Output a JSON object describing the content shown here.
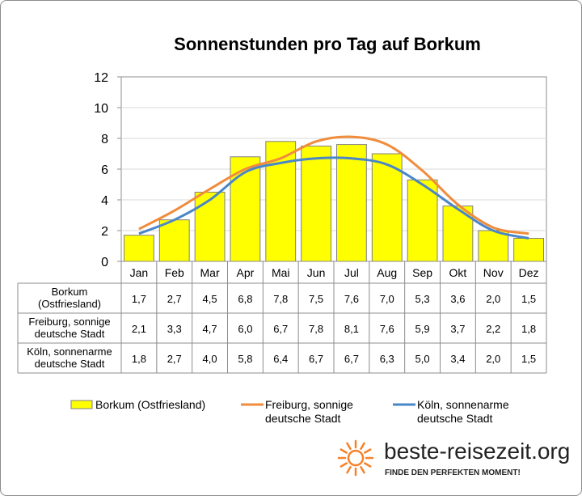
{
  "chart_data": {
    "type": "bar",
    "title": "Sonnenstunden pro Tag auf Borkum",
    "categories": [
      "Jan",
      "Feb",
      "Mar",
      "Apr",
      "Mai",
      "Jun",
      "Jul",
      "Aug",
      "Sep",
      "Okt",
      "Nov",
      "Dez"
    ],
    "ylim": [
      0,
      12
    ],
    "yticks": [
      0,
      2,
      4,
      6,
      8,
      10,
      12
    ],
    "grid": true,
    "legend_position": "bottom",
    "series": [
      {
        "name": "Borkum (Ostfriesland)",
        "type": "bar",
        "color": "#ffff00",
        "values": [
          1.7,
          2.7,
          4.5,
          6.8,
          7.8,
          7.5,
          7.6,
          7.0,
          5.3,
          3.6,
          2.0,
          1.5
        ],
        "labels": [
          "1,7",
          "2,7",
          "4,5",
          "6,8",
          "7,8",
          "7,5",
          "7,6",
          "7,0",
          "5,3",
          "3,6",
          "2,0",
          "1,5"
        ]
      },
      {
        "name": "Freiburg, sonnige deutsche Stadt",
        "type": "line",
        "color": "#f08c3c",
        "values": [
          2.1,
          3.3,
          4.7,
          6.0,
          6.7,
          7.8,
          8.1,
          7.6,
          5.9,
          3.7,
          2.2,
          1.8
        ],
        "labels": [
          "2,1",
          "3,3",
          "4,7",
          "6,0",
          "6,7",
          "7,8",
          "8,1",
          "7,6",
          "5,9",
          "3,7",
          "2,2",
          "1,8"
        ]
      },
      {
        "name": "Köln, sonnenarme deutsche Stadt",
        "type": "line",
        "color": "#4a86c8",
        "values": [
          1.8,
          2.7,
          4.0,
          5.8,
          6.4,
          6.7,
          6.7,
          6.3,
          5.0,
          3.4,
          2.0,
          1.5
        ],
        "labels": [
          "1,8",
          "2,7",
          "4,0",
          "5,8",
          "6,4",
          "6,7",
          "6,7",
          "6,3",
          "5,0",
          "3,4",
          "2,0",
          "1,5"
        ]
      }
    ],
    "table_row_labels": [
      [
        "Borkum",
        "(Ostfriesland)"
      ],
      [
        "Freiburg, sonnige",
        "deutsche Stadt"
      ],
      [
        "Köln, sonnenarme",
        "deutsche Stadt"
      ]
    ],
    "legend_labels": [
      [
        "Borkum (Ostfriesland)"
      ],
      [
        "Freiburg, sonnige",
        "deutsche Stadt"
      ],
      [
        "Köln, sonnenarme",
        "deutsche Stadt"
      ]
    ]
  },
  "branding": {
    "site": "beste-reisezeit.org",
    "tagline": "FINDE DEN PERFEKTEN MOMENT!",
    "sun_icon_color": "#f5822a"
  }
}
